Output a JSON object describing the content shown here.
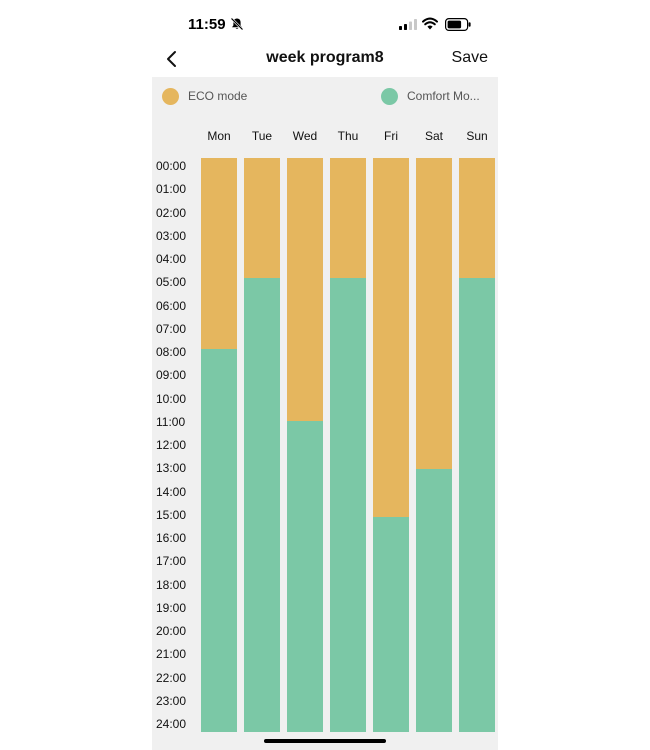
{
  "status_bar": {
    "time": "11:59"
  },
  "header": {
    "title": "week program8",
    "save_label": "Save"
  },
  "colors": {
    "eco": "#E5B65E",
    "comfort": "#7BC8A6",
    "background": "#F0F0F0"
  },
  "legend": {
    "eco_label": "ECO mode",
    "comfort_label": "Comfort Mo..."
  },
  "days": [
    {
      "label": "Mon",
      "comfort_start_hour": 8
    },
    {
      "label": "Tue",
      "comfort_start_hour": 5
    },
    {
      "label": "Wed",
      "comfort_start_hour": 11
    },
    {
      "label": "Thu",
      "comfort_start_hour": 5
    },
    {
      "label": "Fri",
      "comfort_start_hour": 15
    },
    {
      "label": "Sat",
      "comfort_start_hour": 13
    },
    {
      "label": "Sun",
      "comfort_start_hour": 5
    }
  ],
  "hours": [
    "00:00",
    "01:00",
    "02:00",
    "03:00",
    "04:00",
    "05:00",
    "06:00",
    "07:00",
    "08:00",
    "09:00",
    "10:00",
    "11:00",
    "12:00",
    "13:00",
    "14:00",
    "15:00",
    "16:00",
    "17:00",
    "18:00",
    "19:00",
    "20:00",
    "21:00",
    "22:00",
    "23:00",
    "24:00"
  ]
}
